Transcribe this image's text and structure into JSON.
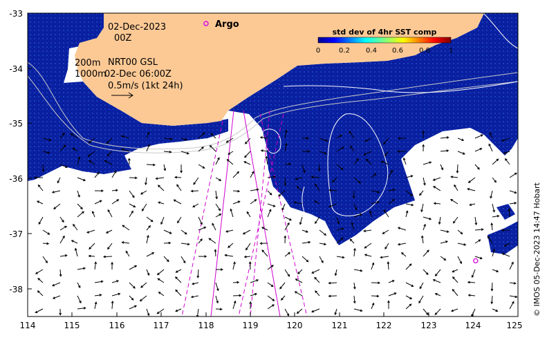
{
  "map": {
    "date_label": "02-Dec-2023",
    "time_label": "00Z",
    "depth_line1": "200m",
    "depth_line2": "1000m",
    "product_label": "NRT00 GSL",
    "product_time": "02-Dec 06:00Z",
    "scale_label": "0.5m/s (1kt 24h)",
    "argo_label": "Argo",
    "credit": "© IMOS 05-Dec-2023 14:47 Hobart",
    "colors": {
      "land": "#FCC995",
      "ocean_high": "#0A20A8",
      "ocean_mid": "#1E50D0",
      "track": "#D000D0",
      "argo": "#E020E0"
    }
  },
  "colorbar": {
    "title": "std dev of 4hr SST comp",
    "ticks": [
      "0",
      "0.2",
      "0.4",
      "0.6",
      "0.8",
      "1"
    ]
  },
  "axes": {
    "x_ticks": [
      "114",
      "115",
      "116",
      "117",
      "118",
      "119",
      "120",
      "121",
      "122",
      "123",
      "124",
      "125"
    ],
    "y_ticks": [
      "-33",
      "-34",
      "-35",
      "-36",
      "-37",
      "-38"
    ]
  },
  "argo_floats": [
    {
      "lon": 118.0,
      "lat": -33.19
    },
    {
      "lon": 124.05,
      "lat": -37.49
    }
  ]
}
